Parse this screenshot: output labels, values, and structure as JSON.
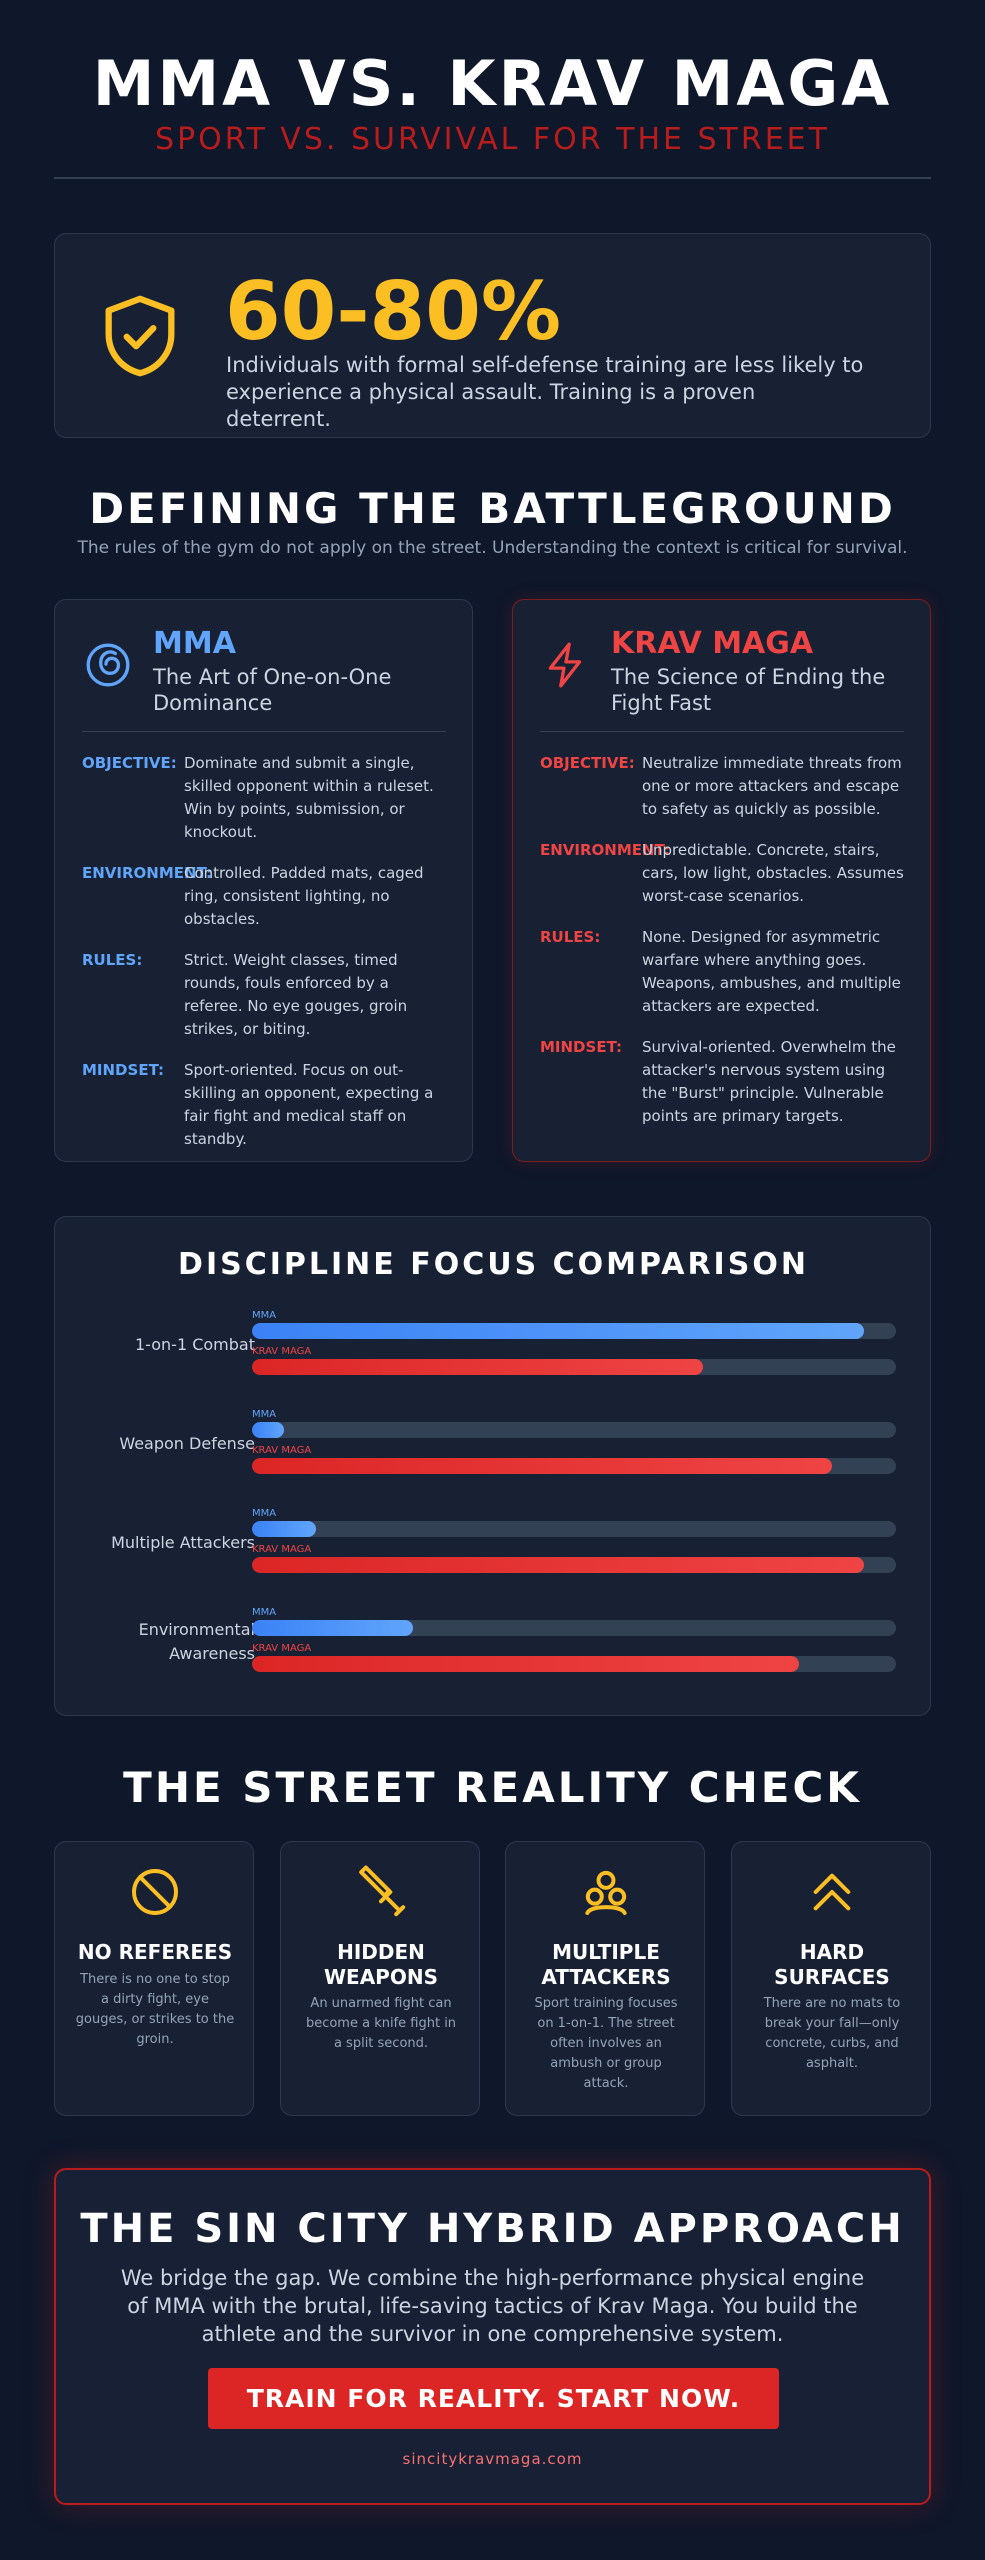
{
  "header": {
    "title": "MMA VS. KRAV MAGA",
    "subtitle": "SPORT VS. SURVIVAL FOR THE STREET"
  },
  "stat": {
    "icon": "shield-check-icon",
    "value": "60-80%",
    "text": "Individuals with formal self-defense training are less likely to experience a physical assault. Training is a proven deterrent."
  },
  "battleground": {
    "title": "DEFINING THE BATTLEGROUND",
    "subtitle": "The rules of the gym do not apply on the street. Understanding the context is critical for survival."
  },
  "mma": {
    "icon": "grappling-icon",
    "name": "MMA",
    "tagline": "The Art of One-on-One Dominance",
    "rows": [
      {
        "label": "OBJECTIVE:",
        "text": "Dominate and submit a single, skilled opponent within a ruleset. Win by points, submission, or knockout."
      },
      {
        "label": "ENVIRONMENT:",
        "text": "Controlled. Padded mats, caged ring, consistent lighting, no obstacles."
      },
      {
        "label": "RULES:",
        "text": "Strict. Weight classes, timed rounds, fouls enforced by a referee. No eye gouges, groin strikes, or biting."
      },
      {
        "label": "MINDSET:",
        "text": "Sport-oriented. Focus on out-skilling an opponent, expecting a fair fight and medical staff on standby."
      }
    ]
  },
  "krav": {
    "icon": "lightning-icon",
    "name": "KRAV MAGA",
    "tagline": "The Science of Ending the Fight Fast",
    "rows": [
      {
        "label": "OBJECTIVE:",
        "text": "Neutralize immediate threats from one or more attackers and escape to safety as quickly as possible."
      },
      {
        "label": "ENVIRONMENT:",
        "text": "Unpredictable. Concrete, stairs, cars, low light, obstacles. Assumes worst-case scenarios."
      },
      {
        "label": "RULES:",
        "text": "None. Designed for asymmetric warfare where anything goes. Weapons, ambushes, and multiple attackers are expected."
      },
      {
        "label": "MINDSET:",
        "text": "Survival-oriented. Overwhelm the attacker's nervous system using the \"Burst\" principle. Vulnerable points are primary targets."
      }
    ]
  },
  "comparison": {
    "title": "DISCIPLINE FOCUS COMPARISON",
    "mma_label": "MMA",
    "krav_label": "KRAV MAGA",
    "colors": {
      "mma": "#3b82f6",
      "krav": "#dc2626"
    },
    "rows": [
      {
        "label": "1-on-1 Combat",
        "mma": 95,
        "krav": 70
      },
      {
        "label": "Weapon Defense",
        "mma": 5,
        "krav": 90
      },
      {
        "label": "Multiple Attackers",
        "mma": 10,
        "krav": 95
      },
      {
        "label": "Environmental Awareness",
        "mma": 25,
        "krav": 85
      }
    ]
  },
  "reality": {
    "title": "THE STREET REALITY CHECK",
    "cards": [
      {
        "icon": "no-entry-icon",
        "title": "NO REFEREES",
        "text": "There is no one to stop a dirty fight, eye gouges, or strikes to the groin."
      },
      {
        "icon": "knife-icon",
        "title": "HIDDEN WEAPONS",
        "text": "An unarmed fight can become a knife fight in a split second."
      },
      {
        "icon": "group-icon",
        "title": "MULTIPLE ATTACKERS",
        "text": "Sport training focuses on 1-on-1. The street often involves an ambush or group attack."
      },
      {
        "icon": "double-chevron-up-icon",
        "title": "HARD SURFACES",
        "text": "There are no mats to break your fall—only concrete, curbs, and asphalt."
      }
    ]
  },
  "cta": {
    "title": "THE SIN CITY HYBRID APPROACH",
    "text": "We bridge the gap. We combine the high-performance physical engine of MMA with the brutal, life-saving tactics of Krav Maga. You build the athlete and the survivor in one comprehensive system.",
    "button": "TRAIN FOR REALITY. START NOW.",
    "url": "sincitykravmaga.com"
  }
}
